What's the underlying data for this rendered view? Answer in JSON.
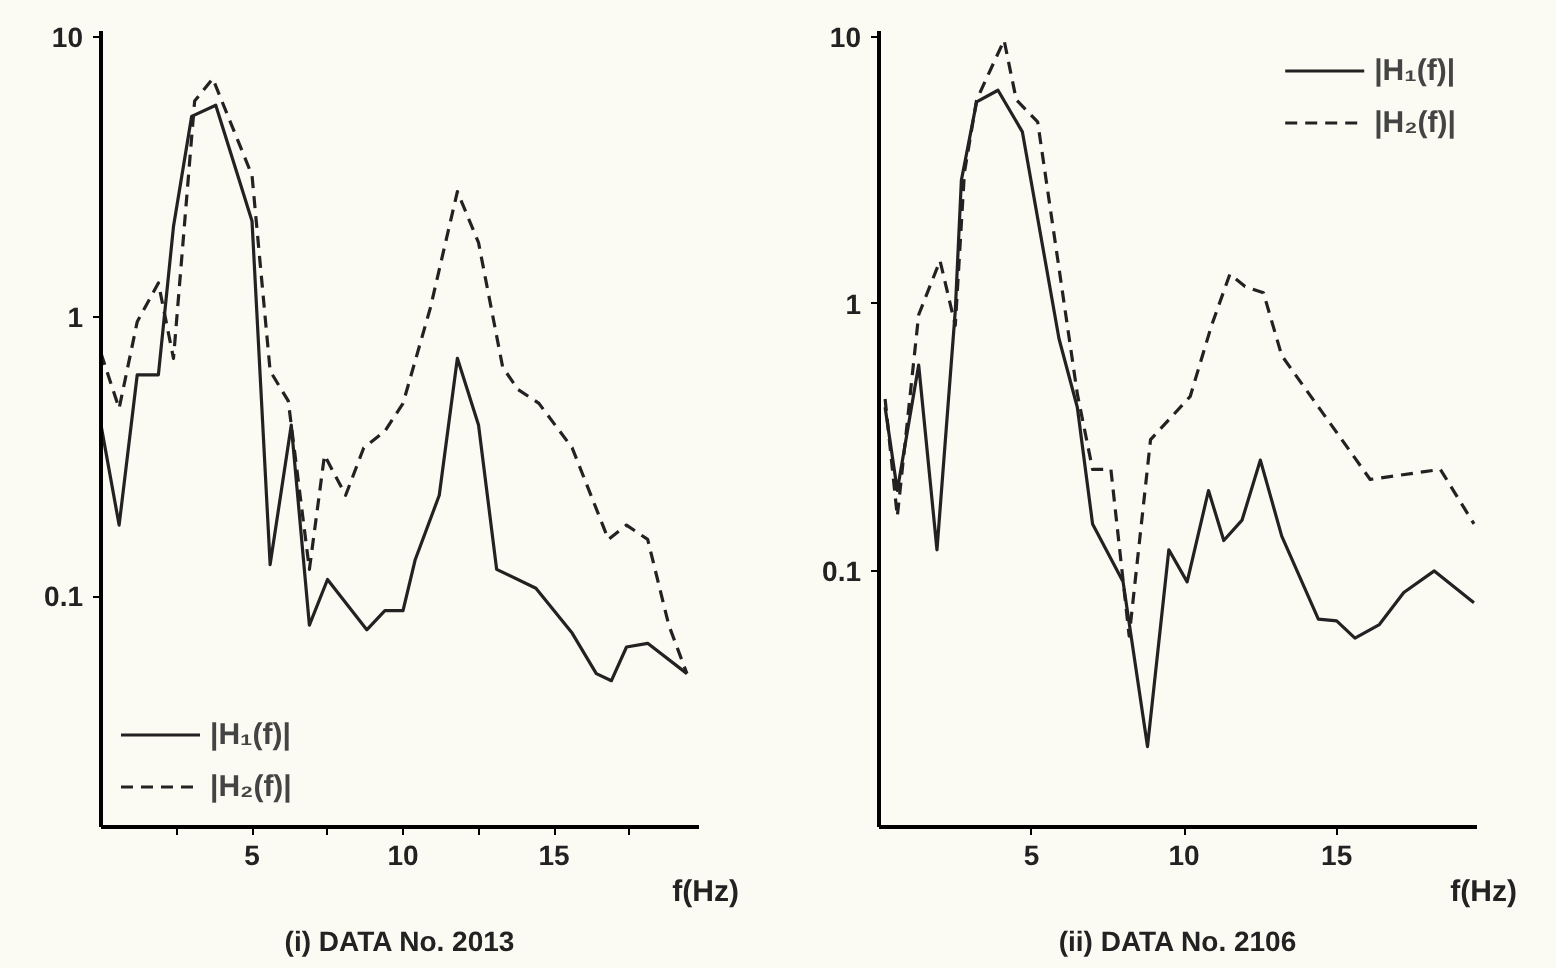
{
  "chart_data": [
    {
      "type": "line",
      "title": "(i) DATA No. 2013",
      "xlabel": "f(Hz)",
      "log": "y",
      "grid": false,
      "legend": "bottom left",
      "xlim": [
        0,
        19.8
      ],
      "ylim": [
        0.015,
        10.5
      ],
      "xticks": [
        {
          "value": 2.5,
          "label": null
        },
        5,
        {
          "value": 7.5,
          "label": null
        },
        10,
        {
          "value": 12.5,
          "label": null
        },
        15,
        {
          "value": 17.5,
          "label": null
        }
      ],
      "yticks": [
        0.1,
        1,
        10
      ],
      "series": [
        {
          "name": "|H₁(f)|",
          "color": "#222222",
          "line_style": "solid",
          "x": [
            0,
            0.6,
            1.2,
            1.9,
            2.4,
            3.0,
            3.8,
            5.0,
            5.6,
            6.3,
            6.9,
            7.5,
            8.8,
            9.4,
            10.0,
            10.4,
            11.2,
            11.8,
            12.5,
            13.1,
            14.4,
            15.6,
            16.4,
            16.9,
            17.4,
            18.1,
            19.4
          ],
          "values": [
            0.41,
            0.18,
            0.62,
            0.62,
            2.1,
            5.2,
            5.7,
            2.2,
            0.13,
            0.41,
            0.079,
            0.115,
            0.076,
            0.089,
            0.089,
            0.135,
            0.23,
            0.71,
            0.41,
            0.125,
            0.107,
            0.074,
            0.053,
            0.05,
            0.066,
            0.068,
            0.053
          ]
        },
        {
          "name": "|H₂(f)|",
          "color": "#222222",
          "line_style": "dashed",
          "x": [
            0,
            0.6,
            1.2,
            1.9,
            2.4,
            3.1,
            3.7,
            5.0,
            5.6,
            6.2,
            6.9,
            7.4,
            8.1,
            8.7,
            9.4,
            10.0,
            10.9,
            11.8,
            12.5,
            13.3,
            13.8,
            14.5,
            15.6,
            16.8,
            17.4,
            18.1,
            18.8,
            19.4
          ],
          "values": [
            0.74,
            0.47,
            0.96,
            1.32,
            0.71,
            5.9,
            7.1,
            3.2,
            0.64,
            0.5,
            0.125,
            0.32,
            0.23,
            0.34,
            0.39,
            0.49,
            1.07,
            2.8,
            1.84,
            0.66,
            0.55,
            0.49,
            0.34,
            0.16,
            0.18,
            0.16,
            0.079,
            0.053
          ]
        }
      ]
    },
    {
      "type": "line",
      "title": "(ii) DATA No. 2106",
      "xlabel": "f(Hz)",
      "log": "y",
      "grid": false,
      "legend": "top right",
      "xlim": [
        0,
        19.6
      ],
      "ylim": [
        0.011,
        10.5
      ],
      "xticks": [
        5,
        10,
        15
      ],
      "yticks": [
        0.1,
        1,
        10
      ],
      "series": [
        {
          "name": "|H₁(f)|",
          "color": "#222222",
          "line_style": "solid",
          "x": [
            0.2,
            0.6,
            1.3,
            1.9,
            2.5,
            2.7,
            3.2,
            3.9,
            4.7,
            5.9,
            6.5,
            7.0,
            8.0,
            8.8,
            9.5,
            10.1,
            10.8,
            11.3,
            11.9,
            12.5,
            13.2,
            14.4,
            15.0,
            15.6,
            16.4,
            17.2,
            18.2,
            19.5
          ],
          "values": [
            0.41,
            0.2,
            0.59,
            0.12,
            0.94,
            2.9,
            5.7,
            6.3,
            4.4,
            0.74,
            0.41,
            0.15,
            0.091,
            0.022,
            0.12,
            0.091,
            0.2,
            0.13,
            0.155,
            0.26,
            0.135,
            0.066,
            0.065,
            0.056,
            0.063,
            0.083,
            0.1,
            0.076
          ]
        },
        {
          "name": "|H₂(f)|",
          "color": "#222222",
          "line_style": "dashed",
          "x": [
            0.2,
            0.6,
            1.3,
            2.0,
            2.5,
            2.8,
            3.2,
            4.1,
            4.5,
            5.2,
            6.5,
            7.0,
            7.6,
            8.2,
            8.9,
            10.2,
            10.9,
            11.5,
            12.0,
            12.6,
            13.2,
            16.1,
            18.4,
            19.5
          ],
          "values": [
            0.44,
            0.16,
            0.91,
            1.45,
            0.83,
            3.1,
            5.8,
            9.7,
            5.8,
            4.8,
            0.46,
            0.24,
            0.24,
            0.057,
            0.31,
            0.45,
            0.83,
            1.29,
            1.16,
            1.1,
            0.64,
            0.22,
            0.24,
            0.15
          ]
        }
      ]
    }
  ]
}
